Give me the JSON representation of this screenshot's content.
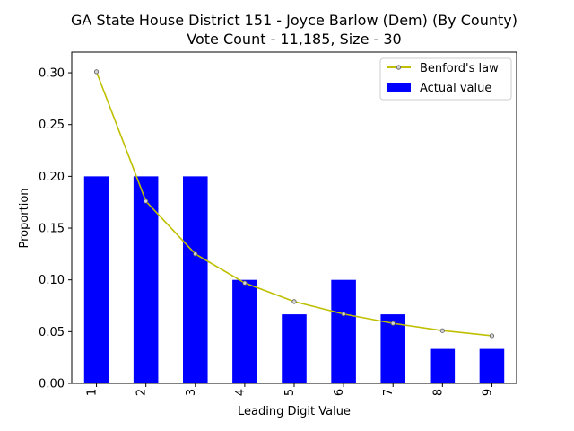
{
  "chart_data": {
    "type": "bar",
    "title": "GA State House District 151 - Joyce Barlow (Dem) (By County)",
    "subtitle": "Vote Count - 11,185, Size - 30",
    "xlabel": "Leading Digit Value",
    "ylabel": "Proportion",
    "categories": [
      "1",
      "2",
      "3",
      "4",
      "5",
      "6",
      "7",
      "8",
      "9"
    ],
    "ylim": [
      0,
      0.32
    ],
    "yticks": [
      "0.00",
      "0.05",
      "0.10",
      "0.15",
      "0.20",
      "0.25",
      "0.30"
    ],
    "grid": false,
    "legend_position": "top-right",
    "series": [
      {
        "name": "Benford's law",
        "kind": "line",
        "color": "#bfbf00",
        "values": [
          0.301,
          0.176,
          0.125,
          0.097,
          0.079,
          0.067,
          0.058,
          0.051,
          0.046
        ]
      },
      {
        "name": "Actual value",
        "kind": "bar",
        "color": "#0000ff",
        "values": [
          0.2,
          0.2,
          0.2,
          0.1,
          0.0667,
          0.1,
          0.0667,
          0.0333,
          0.0333
        ]
      }
    ]
  }
}
